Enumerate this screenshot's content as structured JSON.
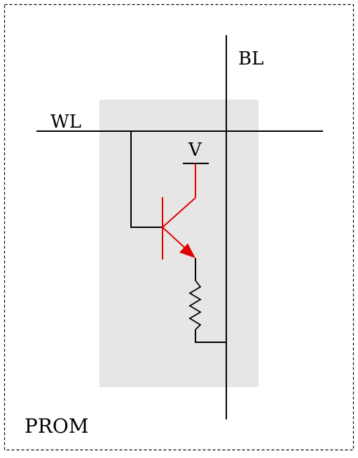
{
  "diagram": {
    "frame_label": "PROM",
    "bit_line_label": "BL",
    "word_line_label": "WL",
    "supply_label": "V"
  },
  "colors": {
    "wire": "#000000",
    "transistor": "#e00000",
    "cell_background": "#e6e6e6",
    "border": "#000000"
  }
}
